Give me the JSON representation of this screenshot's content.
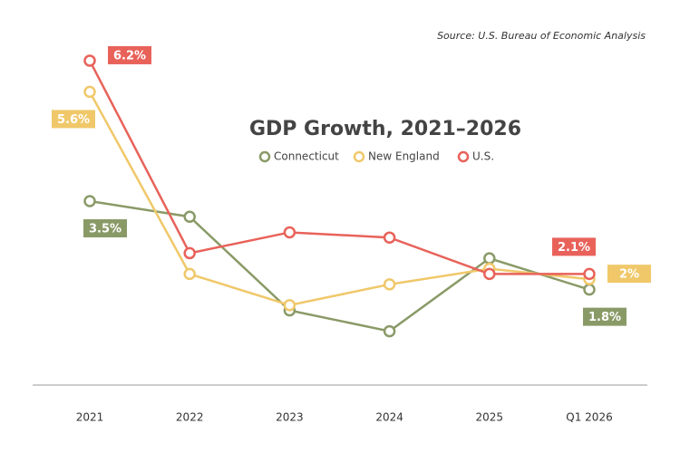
{
  "chart_data": {
    "type": "line",
    "title": "GDP Growth, 2021–2026",
    "source": "Source: U.S. Bureau of Economic Analysis",
    "categories": [
      "2021",
      "2022",
      "2023",
      "2024",
      "2025",
      "Q1 2026"
    ],
    "ylim": [
      0,
      7
    ],
    "series": [
      {
        "name": "Connecticut",
        "color": "#8a9a67",
        "values": [
          3.5,
          3.2,
          1.4,
          1.0,
          2.4,
          1.8
        ],
        "value_labels": [
          "3.5%",
          null,
          null,
          null,
          null,
          "1.8%"
        ]
      },
      {
        "name": "New England",
        "color": "#f0c86a",
        "values": [
          5.6,
          2.1,
          1.5,
          1.9,
          2.2,
          2
        ],
        "value_labels": [
          "5.6%",
          null,
          null,
          null,
          null,
          "2%"
        ]
      },
      {
        "name": "U.S.",
        "color": "#e8625a",
        "values": [
          6.2,
          2.5,
          2.9,
          2.8,
          2.1,
          2.1
        ],
        "value_labels": [
          "6.2%",
          null,
          null,
          null,
          null,
          "2.1%"
        ]
      }
    ]
  }
}
